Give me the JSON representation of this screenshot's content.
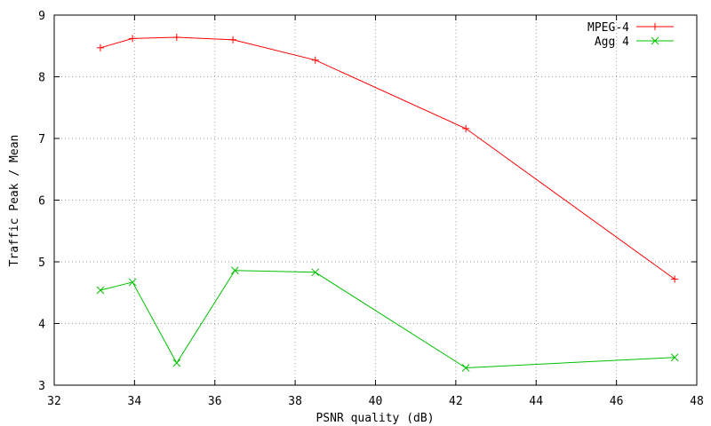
{
  "chart_data": {
    "type": "line",
    "xlabel": "PSNR quality (dB)",
    "ylabel": "Traffic Peak / Mean",
    "xlim": [
      32,
      48
    ],
    "ylim": [
      3,
      9
    ],
    "xticks": [
      "32",
      "34",
      "36",
      "38",
      "40",
      "42",
      "44",
      "46",
      "48"
    ],
    "yticks": [
      "3",
      "4",
      "5",
      "6",
      "7",
      "8",
      "9"
    ],
    "grid": true,
    "legend_position": "top-right",
    "series": [
      {
        "name": "MPEG-4",
        "color": "#ff0000",
        "marker": "plus",
        "points": [
          {
            "x": 33.15,
            "y": 8.47
          },
          {
            "x": 33.95,
            "y": 8.62
          },
          {
            "x": 35.05,
            "y": 8.64
          },
          {
            "x": 36.45,
            "y": 8.6
          },
          {
            "x": 38.5,
            "y": 8.27
          },
          {
            "x": 42.25,
            "y": 7.16
          },
          {
            "x": 47.45,
            "y": 4.72
          }
        ]
      },
      {
        "name": "Agg 4",
        "color": "#00c000",
        "marker": "cross",
        "points": [
          {
            "x": 33.15,
            "y": 4.54
          },
          {
            "x": 33.95,
            "y": 4.67
          },
          {
            "x": 35.05,
            "y": 3.36
          },
          {
            "x": 36.5,
            "y": 4.86
          },
          {
            "x": 38.5,
            "y": 4.83
          },
          {
            "x": 42.25,
            "y": 3.28
          },
          {
            "x": 47.45,
            "y": 3.45
          }
        ]
      }
    ]
  }
}
